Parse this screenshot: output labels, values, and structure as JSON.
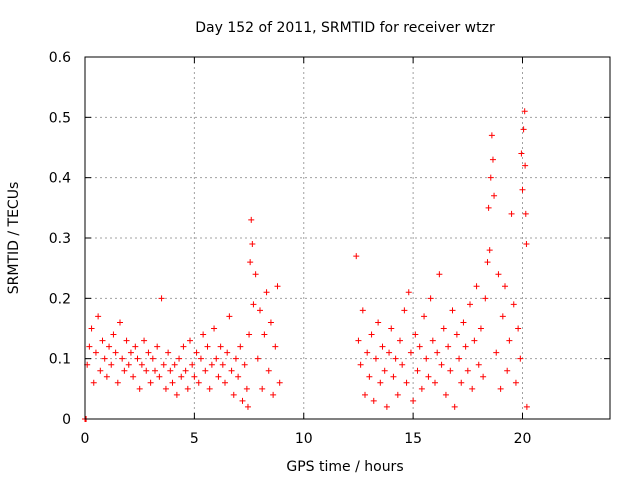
{
  "chart_data": {
    "type": "scatter",
    "title": "Day 152 of 2011, SRMTID for receiver wtzr",
    "xlabel": "GPS time / hours",
    "ylabel": "SRMTID / TECUs",
    "xlim": [
      0,
      24
    ],
    "ylim": [
      0,
      0.6
    ],
    "x_ticks": [
      "0",
      "5",
      "10",
      "15",
      "20"
    ],
    "y_ticks": [
      "0",
      "0.1",
      "0.2",
      "0.3",
      "0.4",
      "0.5",
      "0.6"
    ],
    "grid": true,
    "marker": "plus",
    "marker_color": "#ff0000",
    "series": [
      {
        "name": "wtzr",
        "points": [
          [
            0.0,
            0.0
          ],
          [
            0.02,
            0.0
          ],
          [
            0.05,
            0.0
          ],
          [
            0.1,
            0.09
          ],
          [
            0.2,
            0.12
          ],
          [
            0.3,
            0.15
          ],
          [
            0.4,
            0.06
          ],
          [
            0.5,
            0.11
          ],
          [
            0.6,
            0.17
          ],
          [
            0.7,
            0.08
          ],
          [
            0.8,
            0.13
          ],
          [
            0.9,
            0.1
          ],
          [
            1.0,
            0.07
          ],
          [
            1.1,
            0.12
          ],
          [
            1.2,
            0.09
          ],
          [
            1.3,
            0.14
          ],
          [
            1.4,
            0.11
          ],
          [
            1.5,
            0.06
          ],
          [
            1.6,
            0.16
          ],
          [
            1.7,
            0.1
          ],
          [
            1.8,
            0.08
          ],
          [
            1.9,
            0.13
          ],
          [
            2.0,
            0.09
          ],
          [
            2.1,
            0.11
          ],
          [
            2.2,
            0.07
          ],
          [
            2.3,
            0.12
          ],
          [
            2.4,
            0.1
          ],
          [
            2.5,
            0.05
          ],
          [
            2.6,
            0.09
          ],
          [
            2.7,
            0.13
          ],
          [
            2.8,
            0.08
          ],
          [
            2.9,
            0.11
          ],
          [
            3.0,
            0.06
          ],
          [
            3.1,
            0.1
          ],
          [
            3.2,
            0.08
          ],
          [
            3.3,
            0.12
          ],
          [
            3.4,
            0.07
          ],
          [
            3.5,
            0.2
          ],
          [
            3.6,
            0.09
          ],
          [
            3.7,
            0.05
          ],
          [
            3.8,
            0.11
          ],
          [
            3.9,
            0.08
          ],
          [
            4.0,
            0.06
          ],
          [
            4.1,
            0.09
          ],
          [
            4.2,
            0.04
          ],
          [
            4.3,
            0.1
          ],
          [
            4.4,
            0.07
          ],
          [
            4.5,
            0.12
          ],
          [
            4.6,
            0.08
          ],
          [
            4.7,
            0.05
          ],
          [
            4.8,
            0.13
          ],
          [
            4.9,
            0.09
          ],
          [
            5.0,
            0.07
          ],
          [
            5.1,
            0.11
          ],
          [
            5.2,
            0.06
          ],
          [
            5.3,
            0.1
          ],
          [
            5.4,
            0.14
          ],
          [
            5.5,
            0.08
          ],
          [
            5.6,
            0.12
          ],
          [
            5.7,
            0.05
          ],
          [
            5.8,
            0.09
          ],
          [
            5.9,
            0.15
          ],
          [
            6.0,
            0.1
          ],
          [
            6.1,
            0.07
          ],
          [
            6.2,
            0.12
          ],
          [
            6.3,
            0.09
          ],
          [
            6.4,
            0.06
          ],
          [
            6.5,
            0.11
          ],
          [
            6.6,
            0.17
          ],
          [
            6.7,
            0.08
          ],
          [
            6.8,
            0.04
          ],
          [
            6.9,
            0.1
          ],
          [
            7.0,
            0.07
          ],
          [
            7.1,
            0.12
          ],
          [
            7.2,
            0.03
          ],
          [
            7.3,
            0.09
          ],
          [
            7.4,
            0.05
          ],
          [
            7.45,
            0.02
          ],
          [
            7.5,
            0.14
          ],
          [
            7.55,
            0.26
          ],
          [
            7.6,
            0.33
          ],
          [
            7.65,
            0.29
          ],
          [
            7.7,
            0.19
          ],
          [
            7.8,
            0.24
          ],
          [
            7.9,
            0.1
          ],
          [
            8.0,
            0.18
          ],
          [
            8.1,
            0.05
          ],
          [
            8.2,
            0.14
          ],
          [
            8.3,
            0.21
          ],
          [
            8.4,
            0.08
          ],
          [
            8.5,
            0.16
          ],
          [
            8.6,
            0.04
          ],
          [
            8.7,
            0.12
          ],
          [
            8.8,
            0.22
          ],
          [
            8.9,
            0.06
          ],
          [
            12.4,
            0.27
          ],
          [
            12.5,
            0.13
          ],
          [
            12.6,
            0.09
          ],
          [
            12.7,
            0.18
          ],
          [
            12.8,
            0.04
          ],
          [
            12.9,
            0.11
          ],
          [
            13.0,
            0.07
          ],
          [
            13.1,
            0.14
          ],
          [
            13.2,
            0.03
          ],
          [
            13.3,
            0.1
          ],
          [
            13.4,
            0.16
          ],
          [
            13.5,
            0.06
          ],
          [
            13.6,
            0.12
          ],
          [
            13.7,
            0.08
          ],
          [
            13.8,
            0.02
          ],
          [
            13.9,
            0.11
          ],
          [
            14.0,
            0.15
          ],
          [
            14.1,
            0.07
          ],
          [
            14.2,
            0.1
          ],
          [
            14.3,
            0.04
          ],
          [
            14.4,
            0.13
          ],
          [
            14.5,
            0.09
          ],
          [
            14.6,
            0.18
          ],
          [
            14.7,
            0.06
          ],
          [
            14.8,
            0.21
          ],
          [
            14.9,
            0.11
          ],
          [
            15.0,
            0.03
          ],
          [
            15.1,
            0.14
          ],
          [
            15.2,
            0.08
          ],
          [
            15.3,
            0.12
          ],
          [
            15.4,
            0.05
          ],
          [
            15.5,
            0.17
          ],
          [
            15.6,
            0.1
          ],
          [
            15.7,
            0.07
          ],
          [
            15.8,
            0.2
          ],
          [
            15.9,
            0.13
          ],
          [
            16.0,
            0.06
          ],
          [
            16.1,
            0.11
          ],
          [
            16.2,
            0.24
          ],
          [
            16.3,
            0.09
          ],
          [
            16.4,
            0.15
          ],
          [
            16.5,
            0.04
          ],
          [
            16.6,
            0.12
          ],
          [
            16.7,
            0.08
          ],
          [
            16.8,
            0.18
          ],
          [
            16.9,
            0.02
          ],
          [
            17.0,
            0.14
          ],
          [
            17.1,
            0.1
          ],
          [
            17.2,
            0.06
          ],
          [
            17.3,
            0.16
          ],
          [
            17.4,
            0.12
          ],
          [
            17.5,
            0.08
          ],
          [
            17.6,
            0.19
          ],
          [
            17.7,
            0.05
          ],
          [
            17.8,
            0.13
          ],
          [
            17.9,
            0.22
          ],
          [
            18.0,
            0.09
          ],
          [
            18.1,
            0.15
          ],
          [
            18.2,
            0.07
          ],
          [
            18.3,
            0.2
          ],
          [
            18.4,
            0.26
          ],
          [
            18.45,
            0.35
          ],
          [
            18.5,
            0.28
          ],
          [
            18.55,
            0.4
          ],
          [
            18.6,
            0.47
          ],
          [
            18.65,
            0.43
          ],
          [
            18.7,
            0.37
          ],
          [
            18.8,
            0.11
          ],
          [
            18.9,
            0.24
          ],
          [
            19.0,
            0.05
          ],
          [
            19.1,
            0.17
          ],
          [
            19.2,
            0.22
          ],
          [
            19.3,
            0.08
          ],
          [
            19.4,
            0.13
          ],
          [
            19.5,
            0.34
          ],
          [
            19.6,
            0.19
          ],
          [
            19.7,
            0.06
          ],
          [
            19.8,
            0.15
          ],
          [
            19.9,
            0.1
          ],
          [
            19.95,
            0.44
          ],
          [
            20.0,
            0.38
          ],
          [
            20.05,
            0.48
          ],
          [
            20.1,
            0.51
          ],
          [
            20.12,
            0.42
          ],
          [
            20.15,
            0.34
          ],
          [
            20.18,
            0.29
          ],
          [
            20.2,
            0.02
          ]
        ]
      }
    ]
  }
}
